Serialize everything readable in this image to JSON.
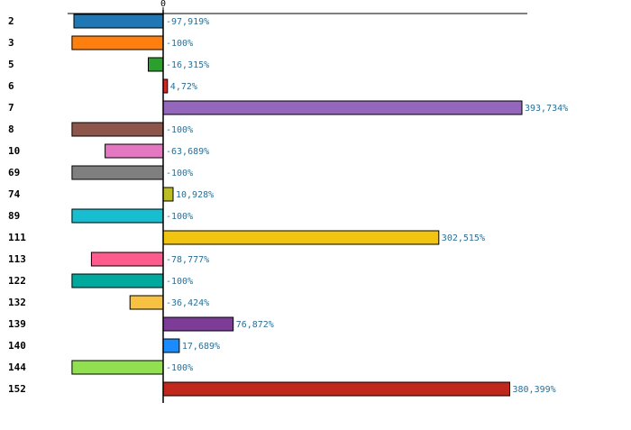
{
  "chart_data": {
    "type": "bar",
    "orientation": "horizontal",
    "categories": [
      "2",
      "3",
      "5",
      "6",
      "7",
      "8",
      "10",
      "69",
      "74",
      "89",
      "111",
      "113",
      "122",
      "132",
      "139",
      "140",
      "144",
      "152"
    ],
    "values": [
      -97.919,
      -100,
      -16.315,
      4.72,
      393.734,
      -100,
      -63.689,
      -100,
      10.928,
      -100,
      302.515,
      -78.777,
      -100,
      -36.424,
      76.872,
      17.689,
      -100,
      380.399
    ],
    "value_labels": [
      "-97,919%",
      "-100%",
      "-16,315%",
      "4,72%",
      "393,734%",
      "-100%",
      "-63,689%",
      "-100%",
      "10,928%",
      "-100%",
      "302,515%",
      "-78,777%",
      "-100%",
      "-36,424%",
      "76,872%",
      "17,689%",
      "-100%",
      "380,399%"
    ],
    "colors": [
      "#1f77b4",
      "#ff7f0e",
      "#2ca02c",
      "#d62728",
      "#9467bd",
      "#8c564b",
      "#e377c2",
      "#7f7f7f",
      "#bcbd22",
      "#17becf",
      "#f1c40f",
      "#ff5c8d",
      "#00a99d",
      "#f7c242",
      "#7d3c98",
      "#1a8cff",
      "#90e050",
      "#c0281b"
    ],
    "axis_tick_label": "0",
    "xlim": [
      -100,
      400
    ],
    "title": "",
    "xlabel": "",
    "ylabel": ""
  }
}
